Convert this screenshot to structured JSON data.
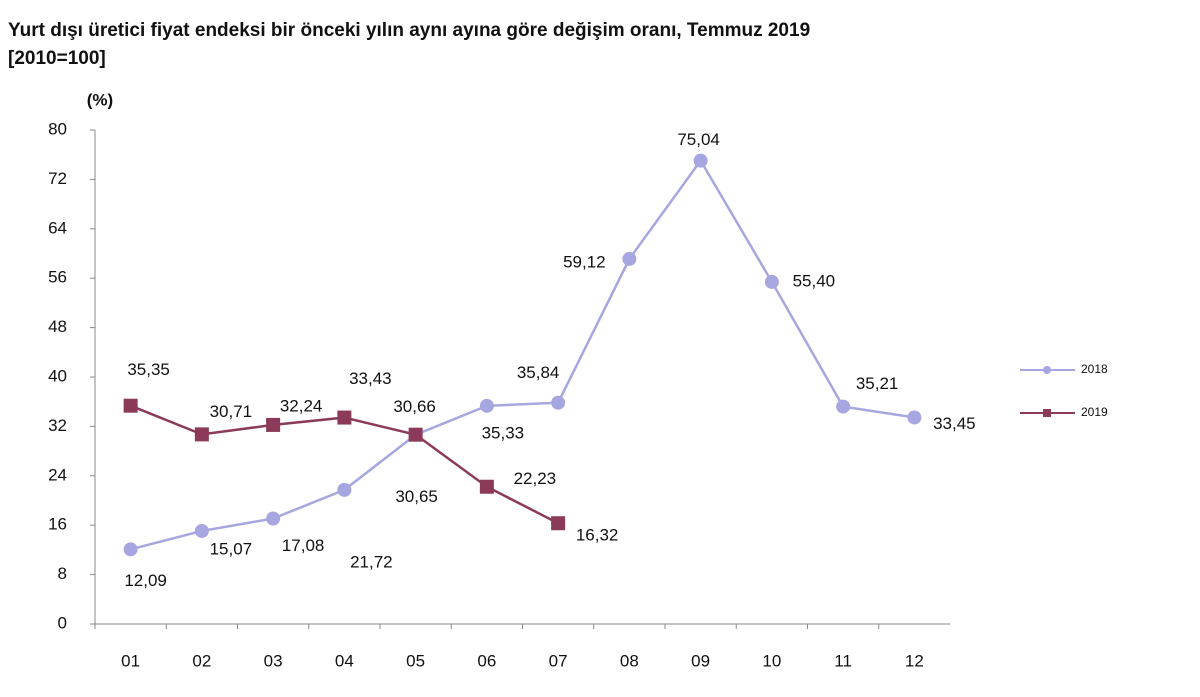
{
  "chart_data": {
    "type": "line",
    "title": "Yurt dışı üretici fiyat endeksi bir önceki yılın aynı ayına göre değişim oranı, Temmuz 2019",
    "subtitle": "[2010=100]",
    "y_label": "(%)",
    "categories": [
      "01",
      "02",
      "03",
      "04",
      "05",
      "06",
      "07",
      "08",
      "09",
      "10",
      "11",
      "12"
    ],
    "series": [
      {
        "name": "2018",
        "color": "#a6a6e0",
        "marker": "circle",
        "values": [
          12.09,
          15.07,
          17.08,
          21.72,
          30.65,
          35.33,
          35.84,
          59.12,
          75.04,
          55.4,
          35.21,
          33.45
        ],
        "value_labels": [
          "12,09",
          "15,07",
          "17,08",
          "21,72",
          "30,65",
          "35,33",
          "35,84",
          "59,12",
          "75,04",
          "55,40",
          "35,21",
          "33,45"
        ]
      },
      {
        "name": "2019",
        "color": "#8b3a5a",
        "marker": "square",
        "values": [
          35.35,
          30.71,
          32.24,
          33.43,
          30.66,
          22.23,
          16.32,
          null,
          null,
          null,
          null,
          null
        ],
        "value_labels": [
          "35,35",
          "30,71",
          "32,24",
          "33,43",
          "30,66",
          "22,23",
          "16,32",
          null,
          null,
          null,
          null,
          null
        ]
      }
    ],
    "ylim": [
      0,
      80
    ],
    "yticks": [
      0,
      8,
      16,
      24,
      32,
      40,
      48,
      56,
      64,
      72,
      80
    ],
    "grid": false,
    "legend": "right"
  }
}
